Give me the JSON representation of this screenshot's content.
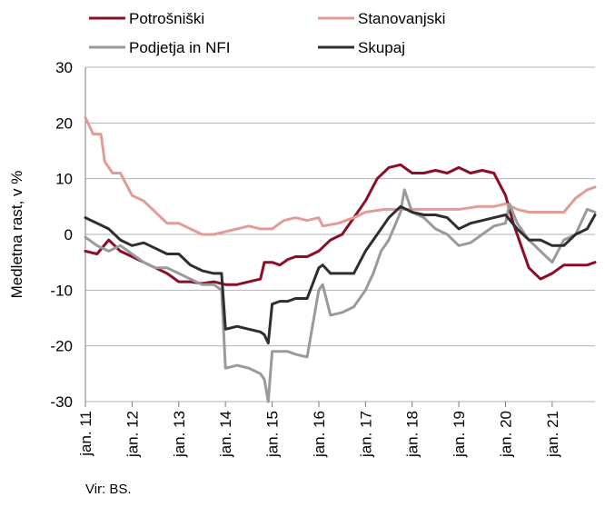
{
  "chart_data": {
    "type": "line",
    "ylabel": "Medletna rast, v %",
    "ylim": [
      -30,
      30
    ],
    "yticks": [
      30,
      20,
      10,
      0,
      -10,
      -20,
      -30
    ],
    "xlim": [
      "2011-01",
      "2021-12"
    ],
    "xticks": [
      "jan. 11",
      "jan. 12",
      "jan. 13",
      "jan. 14",
      "jan. 15",
      "jan. 16",
      "jan. 17",
      "jan. 18",
      "jan. 19",
      "jan. 20",
      "jan. 21"
    ],
    "xtick_dates": [
      "2011-01",
      "2012-01",
      "2013-01",
      "2014-01",
      "2015-01",
      "2016-01",
      "2017-01",
      "2018-01",
      "2019-01",
      "2020-01",
      "2021-01"
    ],
    "grid": "horizontal",
    "legend": "top",
    "source": "Vir: BS.",
    "series": [
      {
        "name": "Potrošniški",
        "color": "#8b0d26",
        "x": [
          "2011-01",
          "2011-04",
          "2011-07",
          "2011-10",
          "2012-01",
          "2012-04",
          "2012-07",
          "2012-10",
          "2013-01",
          "2013-04",
          "2013-07",
          "2013-10",
          "2014-01",
          "2014-04",
          "2014-07",
          "2014-10",
          "2014-11",
          "2014-12",
          "2015-01",
          "2015-03",
          "2015-05",
          "2015-07",
          "2015-10",
          "2016-01",
          "2016-04",
          "2016-07",
          "2016-10",
          "2017-01",
          "2017-04",
          "2017-07",
          "2017-10",
          "2018-01",
          "2018-04",
          "2018-07",
          "2018-10",
          "2019-01",
          "2019-04",
          "2019-07",
          "2019-10",
          "2020-01",
          "2020-03",
          "2020-05",
          "2020-07",
          "2020-10",
          "2021-01",
          "2021-04",
          "2021-07",
          "2021-10",
          "2021-12"
        ],
        "y": [
          -3,
          -3.5,
          -1,
          -3,
          -4,
          -5,
          -6,
          -7,
          -8.5,
          -8.5,
          -8.8,
          -8.5,
          -9,
          -9,
          -8.5,
          -8,
          -5,
          -5,
          -5,
          -5.5,
          -4.5,
          -4,
          -4,
          -3,
          -1,
          0,
          3,
          6,
          10,
          12,
          12.5,
          11,
          11,
          11.5,
          11,
          12,
          11,
          11.5,
          11,
          7,
          2,
          -2,
          -6,
          -8,
          -7,
          -5.5,
          -5.5,
          -5.5,
          -5
        ]
      },
      {
        "name": "Stanovanjski",
        "color": "#e39b97",
        "x": [
          "2011-01",
          "2011-03",
          "2011-05",
          "2011-06",
          "2011-08",
          "2011-10",
          "2012-01",
          "2012-04",
          "2012-07",
          "2012-10",
          "2013-01",
          "2013-04",
          "2013-07",
          "2013-10",
          "2014-01",
          "2014-04",
          "2014-07",
          "2014-10",
          "2015-01",
          "2015-04",
          "2015-07",
          "2015-10",
          "2016-01",
          "2016-02",
          "2016-06",
          "2016-10",
          "2017-01",
          "2017-06",
          "2017-10",
          "2018-01",
          "2018-06",
          "2018-10",
          "2019-01",
          "2019-06",
          "2019-10",
          "2020-01",
          "2020-04",
          "2020-07",
          "2020-10",
          "2021-01",
          "2021-04",
          "2021-07",
          "2021-10",
          "2021-12"
        ],
        "y": [
          21,
          18,
          18,
          13,
          11,
          11,
          7,
          6,
          4,
          2,
          2,
          1,
          0,
          0,
          0.5,
          1,
          1.5,
          1,
          1,
          2.5,
          3,
          2.5,
          3,
          1.5,
          2,
          3,
          4,
          4.5,
          4.5,
          4.5,
          4.5,
          4.5,
          4.5,
          5,
          5,
          5.5,
          4.5,
          4,
          4,
          4,
          4,
          6.5,
          8,
          8.5
        ]
      },
      {
        "name": "Podjetja in NFI",
        "color": "#9a9a9a",
        "x": [
          "2011-01",
          "2011-04",
          "2011-07",
          "2011-10",
          "2012-01",
          "2012-04",
          "2012-07",
          "2012-10",
          "2013-01",
          "2013-04",
          "2013-07",
          "2013-10",
          "2013-12",
          "2014-01",
          "2014-04",
          "2014-07",
          "2014-10",
          "2014-11",
          "2014-12",
          "2015-01",
          "2015-03",
          "2015-05",
          "2015-07",
          "2015-10",
          "2016-01",
          "2016-02",
          "2016-04",
          "2016-07",
          "2016-10",
          "2017-01",
          "2017-03",
          "2017-05",
          "2017-07",
          "2017-10",
          "2017-11",
          "2018-01",
          "2018-04",
          "2018-07",
          "2018-10",
          "2019-01",
          "2019-04",
          "2019-07",
          "2019-10",
          "2020-01",
          "2020-02",
          "2020-04",
          "2020-07",
          "2020-10",
          "2021-01",
          "2021-04",
          "2021-07",
          "2021-10",
          "2021-12"
        ],
        "y": [
          -0.5,
          -2,
          -3,
          -2,
          -3.5,
          -5,
          -6,
          -6,
          -7,
          -8,
          -9,
          -9,
          -10,
          -24,
          -23.5,
          -24,
          -25,
          -26,
          -30,
          -21,
          -21,
          -21,
          -21.5,
          -22,
          -10,
          -9,
          -14.5,
          -14,
          -13,
          -10,
          -7,
          -3,
          -1,
          4,
          8,
          4,
          3,
          1,
          0,
          -2,
          -1.5,
          0,
          1.5,
          2,
          5.5,
          2,
          -1,
          -3,
          -5,
          -1,
          0,
          4.5,
          4
        ]
      },
      {
        "name": "Skupaj",
        "color": "#2e2e2e",
        "x": [
          "2011-01",
          "2011-04",
          "2011-07",
          "2011-10",
          "2012-01",
          "2012-04",
          "2012-07",
          "2012-10",
          "2013-01",
          "2013-04",
          "2013-07",
          "2013-10",
          "2013-12",
          "2014-01",
          "2014-04",
          "2014-07",
          "2014-10",
          "2014-11",
          "2014-12",
          "2015-01",
          "2015-03",
          "2015-05",
          "2015-07",
          "2015-10",
          "2016-01",
          "2016-02",
          "2016-04",
          "2016-07",
          "2016-10",
          "2017-01",
          "2017-04",
          "2017-07",
          "2017-10",
          "2018-01",
          "2018-04",
          "2018-07",
          "2018-10",
          "2019-01",
          "2019-04",
          "2019-07",
          "2019-10",
          "2020-01",
          "2020-04",
          "2020-07",
          "2020-10",
          "2021-01",
          "2021-04",
          "2021-07",
          "2021-10",
          "2021-12"
        ],
        "y": [
          3,
          2,
          1,
          -1,
          -2,
          -1.5,
          -2.5,
          -3.5,
          -3.5,
          -5.5,
          -6.5,
          -7,
          -7,
          -17,
          -16.5,
          -17,
          -17.5,
          -18,
          -19.5,
          -12.5,
          -12,
          -12,
          -11.5,
          -11.5,
          -6,
          -5.5,
          -7,
          -7,
          -7,
          -3,
          0,
          3,
          5,
          4,
          3.5,
          3.5,
          3,
          1,
          2,
          2.5,
          3,
          3.5,
          1,
          -1,
          -1,
          -2,
          -2,
          0,
          1,
          3.5
        ]
      }
    ]
  }
}
